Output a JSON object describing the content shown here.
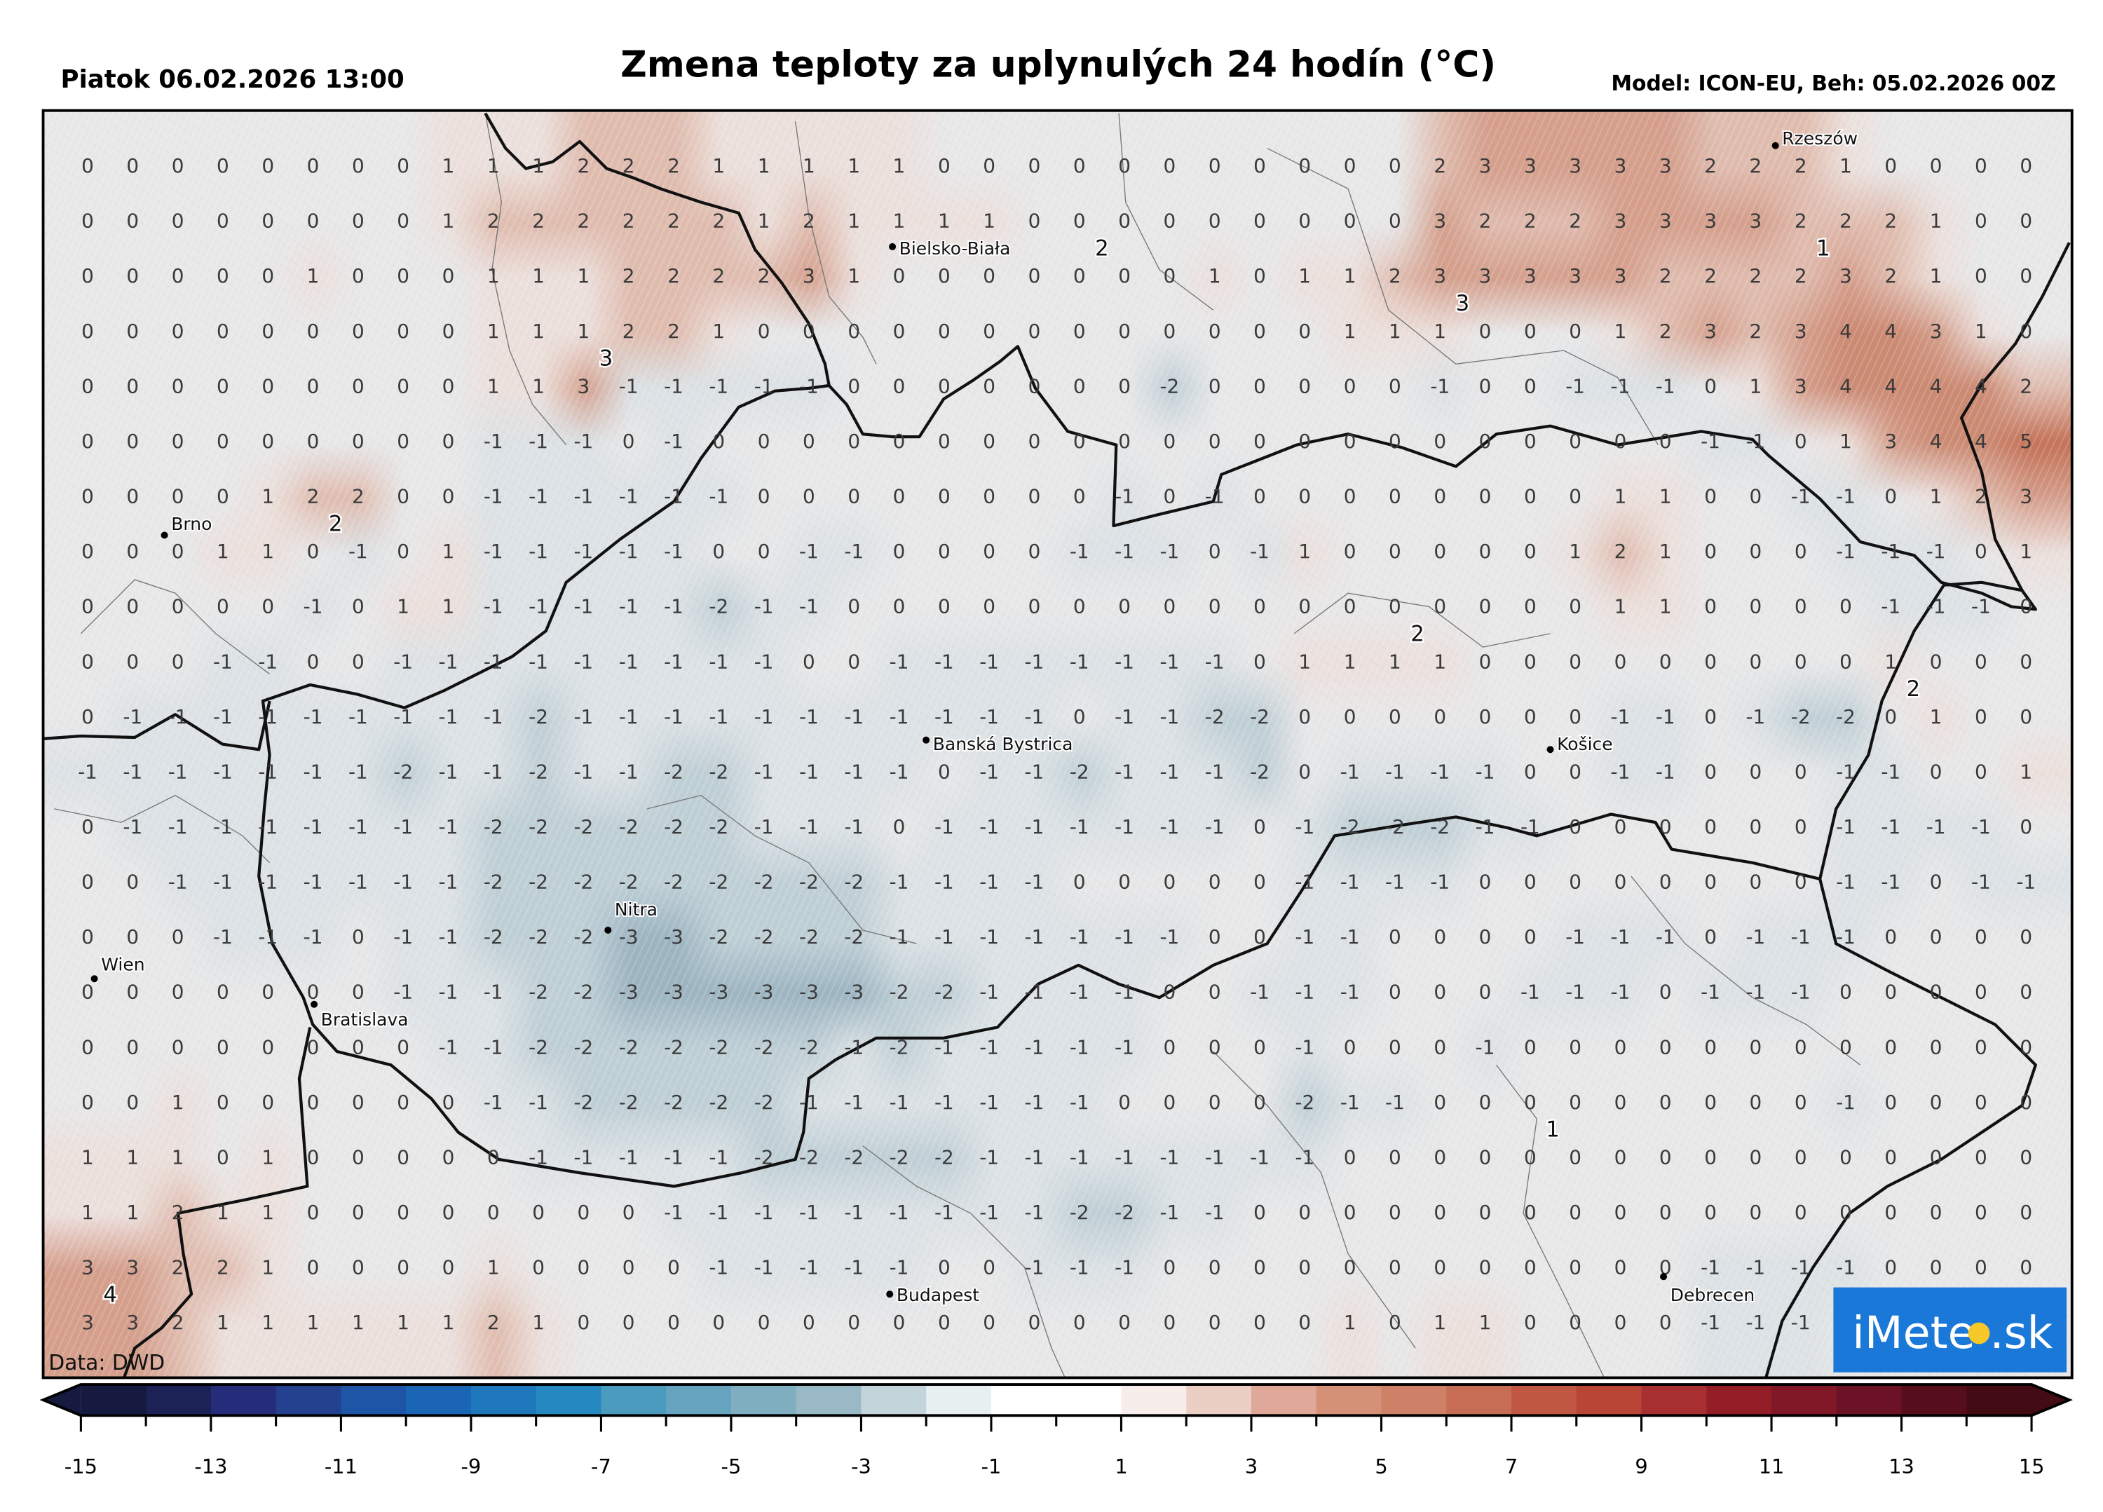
{
  "header": {
    "datetime": "Piatok 06.02.2026 13:00",
    "title": "Zmena teploty za uplynulých 24 hodín (°C)",
    "model_run": "Model: ICON-EU, Beh: 05.02.2026 00Z"
  },
  "data_source": "Data: DWD",
  "logo": {
    "text": "iMeteo.sk",
    "prefix": "iMete",
    "suffix": ".sk",
    "bg_color": "#1a78d8",
    "sun_color": "#f7c829"
  },
  "cities": [
    {
      "name": "Rzeszów"
    },
    {
      "name": "Bielsko-Biała"
    },
    {
      "name": "Brno"
    },
    {
      "name": "Banská Bystrica"
    },
    {
      "name": "Košice"
    },
    {
      "name": "Nitra"
    },
    {
      "name": "Wien"
    },
    {
      "name": "Bratislava"
    },
    {
      "name": "Budapest"
    },
    {
      "name": "Debrecen"
    }
  ],
  "contour_labels": [
    "3",
    "2",
    "2",
    "3",
    "1",
    "2",
    "2",
    "1",
    "4"
  ],
  "shading_colors": {
    "-3": "#9db5c1",
    "-2": "#bfcfd6",
    "-1": "#dce2e5",
    "0": "#e8e8e9",
    "1": "#ece0dc",
    "2": "#e0bcaf",
    "3": "#d59f8c",
    "4": "#cc8a73",
    "5": "#c47258"
  },
  "colorbar": {
    "min": -15,
    "max": 15,
    "extend": "both",
    "tick_labels": [
      "-15",
      "-13",
      "-11",
      "-9",
      "-7",
      "-5",
      "-3",
      "-1",
      "1",
      "3",
      "5",
      "7",
      "9",
      "11",
      "13",
      "15"
    ],
    "colors": [
      "#161a3f",
      "#1c2156",
      "#252c7a",
      "#23418f",
      "#1f55a6",
      "#1b65b5",
      "#1f78bc",
      "#2588c0",
      "#4a9bbd",
      "#65a3bf",
      "#7fafc1",
      "#99b9c6",
      "#c3d5db",
      "#e8eff1",
      "#ffffff",
      "#ffffff",
      "#f7eeeb",
      "#ebcfc4",
      "#dfa898",
      "#d59177",
      "#cf8168",
      "#c76d56",
      "#bf5742",
      "#b94536",
      "#a83031",
      "#931e28",
      "#801828",
      "#6c1226",
      "#560d1c",
      "#430b14"
    ]
  },
  "grid_values": [
    [
      0,
      0,
      0,
      0,
      0,
      0,
      0,
      0,
      1,
      1,
      1,
      2,
      2,
      2,
      1,
      1,
      1,
      1,
      1,
      0,
      0,
      0,
      0,
      0,
      0,
      0,
      0,
      0,
      0,
      0,
      2,
      3,
      3,
      3,
      3,
      3,
      2,
      2,
      2,
      1,
      0,
      0,
      0,
      0
    ],
    [
      0,
      0,
      0,
      0,
      0,
      0,
      0,
      0,
      1,
      2,
      2,
      2,
      2,
      2,
      2,
      1,
      2,
      1,
      1,
      1,
      1,
      0,
      0,
      0,
      0,
      0,
      0,
      0,
      0,
      0,
      3,
      2,
      2,
      2,
      3,
      3,
      3,
      3,
      2,
      2,
      2,
      1,
      0,
      0
    ],
    [
      0,
      0,
      0,
      0,
      0,
      1,
      0,
      0,
      0,
      1,
      1,
      1,
      2,
      2,
      2,
      2,
      3,
      1,
      0,
      0,
      0,
      0,
      0,
      0,
      0,
      1,
      0,
      1,
      1,
      2,
      3,
      3,
      3,
      3,
      3,
      2,
      2,
      2,
      2,
      3,
      2,
      1,
      0,
      0
    ],
    [
      0,
      0,
      0,
      0,
      0,
      0,
      0,
      0,
      0,
      1,
      1,
      1,
      2,
      2,
      1,
      0,
      0,
      0,
      0,
      0,
      0,
      0,
      0,
      0,
      0,
      0,
      0,
      0,
      1,
      1,
      1,
      0,
      0,
      0,
      1,
      2,
      3,
      2,
      3,
      4,
      4,
      3,
      1,
      0
    ],
    [
      0,
      0,
      0,
      0,
      0,
      0,
      0,
      0,
      0,
      1,
      1,
      3,
      -1,
      -1,
      -1,
      -1,
      -1,
      0,
      0,
      0,
      0,
      0,
      0,
      0,
      -2,
      0,
      0,
      0,
      0,
      0,
      -1,
      0,
      0,
      -1,
      -1,
      -1,
      0,
      1,
      3,
      4,
      4,
      4,
      4,
      2
    ],
    [
      0,
      0,
      0,
      0,
      0,
      0,
      0,
      0,
      0,
      -1,
      -1,
      -1,
      0,
      -1,
      0,
      0,
      0,
      0,
      0,
      0,
      0,
      0,
      0,
      0,
      0,
      0,
      0,
      0,
      0,
      0,
      0,
      0,
      0,
      0,
      0,
      0,
      -1,
      -1,
      0,
      1,
      3,
      4,
      4,
      5
    ],
    [
      0,
      0,
      0,
      0,
      1,
      2,
      2,
      0,
      0,
      -1,
      -1,
      -1,
      -1,
      -1,
      -1,
      0,
      0,
      0,
      0,
      0,
      0,
      0,
      0,
      -1,
      0,
      -1,
      0,
      0,
      0,
      0,
      0,
      0,
      0,
      0,
      1,
      1,
      0,
      0,
      -1,
      -1,
      0,
      1,
      2,
      3
    ],
    [
      0,
      0,
      0,
      1,
      1,
      0,
      -1,
      0,
      1,
      -1,
      -1,
      -1,
      -1,
      -1,
      0,
      0,
      -1,
      -1,
      0,
      0,
      0,
      0,
      -1,
      -1,
      -1,
      0,
      -1,
      1,
      0,
      0,
      0,
      0,
      0,
      1,
      2,
      1,
      0,
      0,
      0,
      -1,
      -1,
      -1,
      0,
      1
    ],
    [
      0,
      0,
      0,
      0,
      0,
      -1,
      0,
      1,
      1,
      -1,
      -1,
      -1,
      -1,
      -1,
      -2,
      -1,
      -1,
      0,
      0,
      0,
      0,
      0,
      0,
      0,
      0,
      0,
      0,
      0,
      0,
      0,
      0,
      0,
      0,
      0,
      1,
      1,
      0,
      0,
      0,
      0,
      -1,
      -1,
      -1,
      0
    ],
    [
      0,
      0,
      0,
      -1,
      -1,
      0,
      0,
      -1,
      -1,
      -1,
      -1,
      -1,
      -1,
      -1,
      -1,
      -1,
      0,
      0,
      -1,
      -1,
      -1,
      -1,
      -1,
      -1,
      -1,
      -1,
      0,
      1,
      1,
      1,
      1,
      0,
      0,
      0,
      0,
      0,
      0,
      0,
      0,
      0,
      1,
      0,
      0,
      0
    ],
    [
      0,
      -1,
      -1,
      -1,
      -1,
      -1,
      -1,
      -1,
      -1,
      -1,
      -2,
      -1,
      -1,
      -1,
      -1,
      -1,
      -1,
      -1,
      -1,
      -1,
      -1,
      -1,
      0,
      -1,
      -1,
      -2,
      -2,
      0,
      0,
      0,
      0,
      0,
      0,
      0,
      -1,
      -1,
      0,
      -1,
      -2,
      -2,
      0,
      1,
      0,
      0
    ],
    [
      -1,
      -1,
      -1,
      -1,
      -1,
      -1,
      -1,
      -2,
      -1,
      -1,
      -2,
      -1,
      -1,
      -2,
      -2,
      -1,
      -1,
      -1,
      -1,
      0,
      -1,
      -1,
      -2,
      -1,
      -1,
      -1,
      -2,
      0,
      -1,
      -1,
      -1,
      -1,
      0,
      0,
      -1,
      -1,
      0,
      0,
      0,
      -1,
      -1,
      0,
      0,
      1
    ],
    [
      0,
      -1,
      -1,
      -1,
      -1,
      -1,
      -1,
      -1,
      -1,
      -2,
      -2,
      -2,
      -2,
      -2,
      -2,
      -1,
      -1,
      -1,
      0,
      -1,
      -1,
      -1,
      -1,
      -1,
      -1,
      -1,
      0,
      -1,
      -2,
      -2,
      -2,
      -1,
      -1,
      0,
      0,
      0,
      0,
      0,
      0,
      -1,
      -1,
      -1,
      -1,
      0
    ],
    [
      0,
      0,
      -1,
      -1,
      -1,
      -1,
      -1,
      -1,
      -1,
      -2,
      -2,
      -2,
      -2,
      -2,
      -2,
      -2,
      -2,
      -2,
      -1,
      -1,
      -1,
      -1,
      0,
      0,
      0,
      0,
      0,
      -1,
      -1,
      -1,
      -1,
      0,
      0,
      0,
      0,
      0,
      0,
      0,
      0,
      -1,
      -1,
      0,
      -1,
      -1
    ],
    [
      0,
      0,
      0,
      -1,
      -1,
      -1,
      0,
      -1,
      -1,
      -2,
      -2,
      -2,
      -3,
      -3,
      -2,
      -2,
      -2,
      -2,
      -1,
      -1,
      -1,
      -1,
      -1,
      -1,
      -1,
      0,
      0,
      -1,
      -1,
      0,
      0,
      0,
      0,
      -1,
      -1,
      -1,
      0,
      -1,
      -1,
      -1,
      0,
      0,
      0,
      0
    ],
    [
      0,
      0,
      0,
      0,
      0,
      0,
      0,
      -1,
      -1,
      -1,
      -2,
      -2,
      -3,
      -3,
      -3,
      -3,
      -3,
      -3,
      -2,
      -2,
      -1,
      -1,
      -1,
      -1,
      0,
      0,
      -1,
      -1,
      -1,
      0,
      0,
      0,
      -1,
      -1,
      -1,
      0,
      -1,
      -1,
      -1,
      0,
      0,
      0,
      0,
      0
    ],
    [
      0,
      0,
      0,
      0,
      0,
      0,
      0,
      0,
      -1,
      -1,
      -2,
      -2,
      -2,
      -2,
      -2,
      -2,
      -2,
      -1,
      -2,
      -1,
      -1,
      -1,
      -1,
      -1,
      0,
      0,
      0,
      -1,
      0,
      0,
      0,
      -1,
      0,
      0,
      0,
      0,
      0,
      0,
      0,
      0,
      0,
      0,
      0,
      0
    ],
    [
      0,
      0,
      1,
      0,
      0,
      0,
      0,
      0,
      0,
      -1,
      -1,
      -2,
      -2,
      -2,
      -2,
      -2,
      -1,
      -1,
      -1,
      -1,
      -1,
      -1,
      -1,
      0,
      0,
      0,
      0,
      -2,
      -1,
      -1,
      0,
      0,
      0,
      0,
      0,
      0,
      0,
      0,
      0,
      -1,
      0,
      0,
      0,
      0
    ],
    [
      1,
      1,
      1,
      0,
      1,
      0,
      0,
      0,
      0,
      0,
      -1,
      -1,
      -1,
      -1,
      -1,
      -2,
      -2,
      -2,
      -2,
      -2,
      -1,
      -1,
      -1,
      -1,
      -1,
      -1,
      -1,
      -1,
      0,
      0,
      0,
      0,
      0,
      0,
      0,
      0,
      0,
      0,
      0,
      0,
      0,
      0,
      0,
      0
    ],
    [
      1,
      1,
      2,
      1,
      1,
      0,
      0,
      0,
      0,
      0,
      0,
      0,
      0,
      -1,
      -1,
      -1,
      -1,
      -1,
      -1,
      -1,
      -1,
      -1,
      -2,
      -2,
      -1,
      -1,
      0,
      0,
      0,
      0,
      0,
      0,
      0,
      0,
      0,
      0,
      0,
      0,
      0,
      0,
      0,
      0,
      0,
      0
    ],
    [
      3,
      3,
      2,
      2,
      1,
      0,
      0,
      0,
      0,
      1,
      0,
      0,
      0,
      0,
      -1,
      -1,
      -1,
      -1,
      -1,
      0,
      0,
      -1,
      -1,
      -1,
      0,
      0,
      0,
      0,
      0,
      0,
      0,
      0,
      0,
      0,
      0,
      0,
      -1,
      -1,
      -1,
      -1,
      0,
      0,
      0,
      0
    ],
    [
      3,
      3,
      2,
      1,
      1,
      1,
      1,
      1,
      1,
      2,
      1,
      0,
      0,
      0,
      0,
      0,
      0,
      0,
      0,
      0,
      0,
      0,
      0,
      0,
      0,
      0,
      0,
      0,
      1,
      0,
      1,
      1,
      0,
      0,
      0,
      0,
      -1,
      -1,
      -1,
      null,
      null,
      null,
      null,
      null
    ]
  ]
}
